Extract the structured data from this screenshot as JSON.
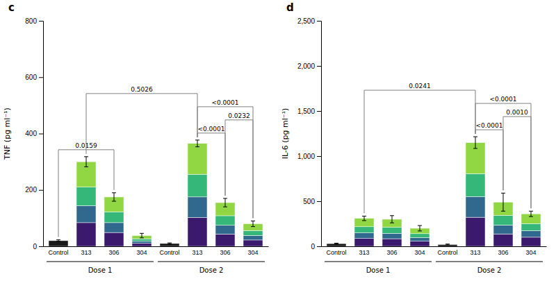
{
  "chart_data": [
    {
      "type": "bar",
      "title": "c",
      "ylabel": "TNF (pg ml⁻¹)",
      "stacked": true,
      "categories": [
        "Control",
        "313",
        "306",
        "304",
        "Control",
        "313",
        "306",
        "304"
      ],
      "groups": [
        {
          "label": "Dose 1",
          "count": 4
        },
        {
          "label": "Dose 2",
          "count": 4
        }
      ],
      "series": [
        {
          "color": "#1a1a1a",
          "values": [
            20,
            null,
            null,
            null,
            10,
            null,
            null,
            null
          ],
          "errors": [
            3,
            null,
            null,
            null,
            2,
            null,
            null,
            null
          ]
        },
        {
          "color": "#3b1a6e",
          "values": [
            null,
            84,
            49,
            10.64,
            null,
            102.2,
            43.4,
            22.4
          ]
        },
        {
          "color": "#31688e",
          "values": [
            null,
            60,
            35,
            7.6,
            null,
            73,
            31,
            16
          ]
        },
        {
          "color": "#35b779",
          "values": [
            null,
            66,
            38.5,
            8.36,
            null,
            80.3,
            34.1,
            17.6
          ]
        },
        {
          "color": "#90d743",
          "values": [
            null,
            90,
            52.5,
            11.4,
            null,
            109.5,
            46.5,
            24
          ],
          "errors": [
            null,
            18,
            15,
            8,
            null,
            12,
            15,
            10
          ]
        }
      ],
      "ylim": [
        0,
        800
      ],
      "yticks": [
        0,
        200,
        400,
        600,
        800
      ],
      "annotations": [
        {
          "text": "0.0159",
          "between": [
            0,
            2
          ]
        },
        {
          "text": "0.5026",
          "between": [
            1,
            5
          ]
        },
        {
          "text": "<0.0001",
          "between": [
            5,
            6
          ]
        },
        {
          "text": "<0.0001",
          "between": [
            5,
            7
          ]
        },
        {
          "text": "0.0232",
          "between": [
            6,
            7
          ]
        }
      ]
    },
    {
      "type": "bar",
      "title": "d",
      "ylabel": "IL-6 (pg ml⁻¹)",
      "stacked": true,
      "categories": [
        "Control",
        "313",
        "306",
        "304",
        "Control",
        "313",
        "306",
        "304"
      ],
      "groups": [
        {
          "label": "Dose 1",
          "count": 4
        },
        {
          "label": "Dose 2",
          "count": 4
        }
      ],
      "series": [
        {
          "color": "#1a1a1a",
          "values": [
            30,
            null,
            null,
            null,
            20,
            null,
            null,
            null
          ],
          "errors": [
            5,
            null,
            null,
            null,
            5,
            null,
            null,
            null
          ]
        },
        {
          "color": "#3b1a6e",
          "values": [
            null,
            86.8,
            84,
            56,
            null,
            322,
            137.2,
            100.8
          ]
        },
        {
          "color": "#31688e",
          "values": [
            null,
            62,
            60,
            40,
            null,
            230,
            98,
            72
          ]
        },
        {
          "color": "#35b779",
          "values": [
            null,
            68.2,
            66,
            44,
            null,
            253,
            107.8,
            79.2
          ]
        },
        {
          "color": "#90d743",
          "values": [
            null,
            93,
            90,
            60,
            null,
            345,
            147,
            108
          ],
          "errors": [
            null,
            25,
            40,
            30,
            null,
            65,
            100,
            30
          ]
        }
      ],
      "ylim": [
        0,
        2500
      ],
      "yticks": [
        0,
        500,
        {
          "value": 1000,
          "label": "1,000"
        },
        {
          "value": 1500,
          "label": "1,500"
        },
        {
          "value": 2000,
          "label": "2,000"
        },
        {
          "value": 2500,
          "label": "2,500"
        }
      ],
      "annotations": [
        {
          "text": "0.0241",
          "between": [
            1,
            5
          ]
        },
        {
          "text": "<0.0001",
          "between": [
            5,
            6
          ]
        },
        {
          "text": "<0.0001",
          "between": [
            5,
            7
          ]
        },
        {
          "text": "0.0010",
          "between": [
            6,
            7
          ]
        }
      ]
    }
  ]
}
